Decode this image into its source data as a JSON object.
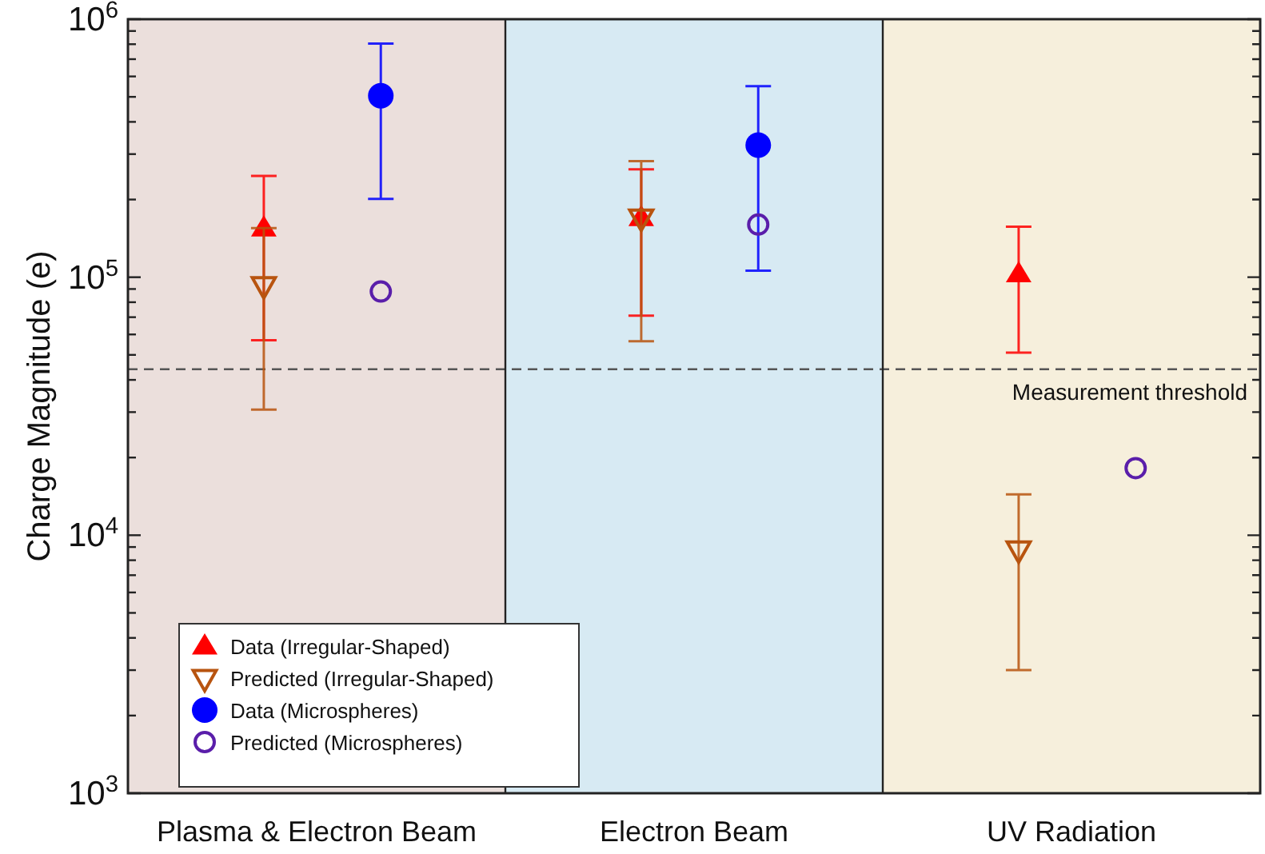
{
  "chart_data": {
    "type": "scatter",
    "ylabel": "Charge Magnitude (e)",
    "categories": [
      "Plasma & Electron Beam",
      "Electron Beam",
      "UV Radiation"
    ],
    "series": [
      {
        "name": "Data (Irregular-Shaped)",
        "color": "#ff0000",
        "marker": "triangle",
        "values": [
          155000,
          170000,
          103000
        ],
        "errors": [
          [
            57000,
            247000
          ],
          [
            71000,
            262000
          ],
          [
            51000,
            157000
          ]
        ]
      },
      {
        "name": "Predicted (Irregular-Shaped)",
        "color": "#b8540f",
        "marker": "triangle-down",
        "values": [
          93000,
          170000,
          8800
        ],
        "errors": [
          [
            30700,
            155000
          ],
          [
            56500,
            282000
          ],
          [
            3000,
            14400
          ]
        ]
      },
      {
        "name": "Data (Microspheres)",
        "color": "#0000ff",
        "marker": "circle",
        "values": [
          505000,
          325000,
          null
        ],
        "errors": [
          [
            201000,
            804000
          ],
          [
            106000,
            550000
          ],
          null
        ]
      },
      {
        "name": "Predicted (Microspheres)",
        "color": "#5a1eaa",
        "marker": "circle-open",
        "values": [
          88000,
          160000,
          18200
        ]
      }
    ],
    "log": true,
    "ylim": [
      1000,
      1000000
    ],
    "yticks": [
      {
        "value": 1000,
        "label": "10$^{3}$"
      },
      {
        "value": 2000,
        "label": null
      },
      {
        "value": 3000,
        "label": null
      },
      {
        "value": 4000,
        "label": null
      },
      {
        "value": 5000,
        "label": null
      },
      {
        "value": 6000,
        "label": null
      },
      {
        "value": 7000,
        "label": null
      },
      {
        "value": 8000,
        "label": null
      },
      {
        "value": 9000,
        "label": null
      },
      {
        "value": 10000,
        "label": "10$^{4}$"
      },
      {
        "value": 20000,
        "label": null
      },
      {
        "value": 30000,
        "label": null
      },
      {
        "value": 40000,
        "label": null
      },
      {
        "value": 50000,
        "label": null
      },
      {
        "value": 60000,
        "label": null
      },
      {
        "value": 70000,
        "label": null
      },
      {
        "value": 80000,
        "label": null
      },
      {
        "value": 90000,
        "label": null
      },
      {
        "value": 100000,
        "label": "10$^{5}$"
      },
      {
        "value": 200000,
        "label": null
      },
      {
        "value": 300000,
        "label": null
      },
      {
        "value": 400000,
        "label": null
      },
      {
        "value": 500000,
        "label": null
      },
      {
        "value": 600000,
        "label": null
      },
      {
        "value": 700000,
        "label": null
      },
      {
        "value": 800000,
        "label": null
      },
      {
        "value": 900000,
        "label": null
      },
      {
        "value": 1000000,
        "label": "10$^{6}$"
      }
    ],
    "bands": [
      {
        "axis": "x",
        "from": "Plasma & Electron Beam",
        "to": "Plasma & Electron Beam",
        "color": "#ebdfdc"
      },
      {
        "axis": "x",
        "from": "Electron Beam",
        "to": "Electron Beam",
        "color": "#d7eaf3"
      },
      {
        "axis": "x",
        "from": "UV Radiation",
        "to": "UV Radiation",
        "color": "#f6efdc"
      }
    ],
    "ref_lines": [
      {
        "axis": "y",
        "value": 44000,
        "label": "Measurement threshold",
        "color": "#555555",
        "line_style": "dashed"
      }
    ],
    "grid": false,
    "legend": "bottom left"
  }
}
